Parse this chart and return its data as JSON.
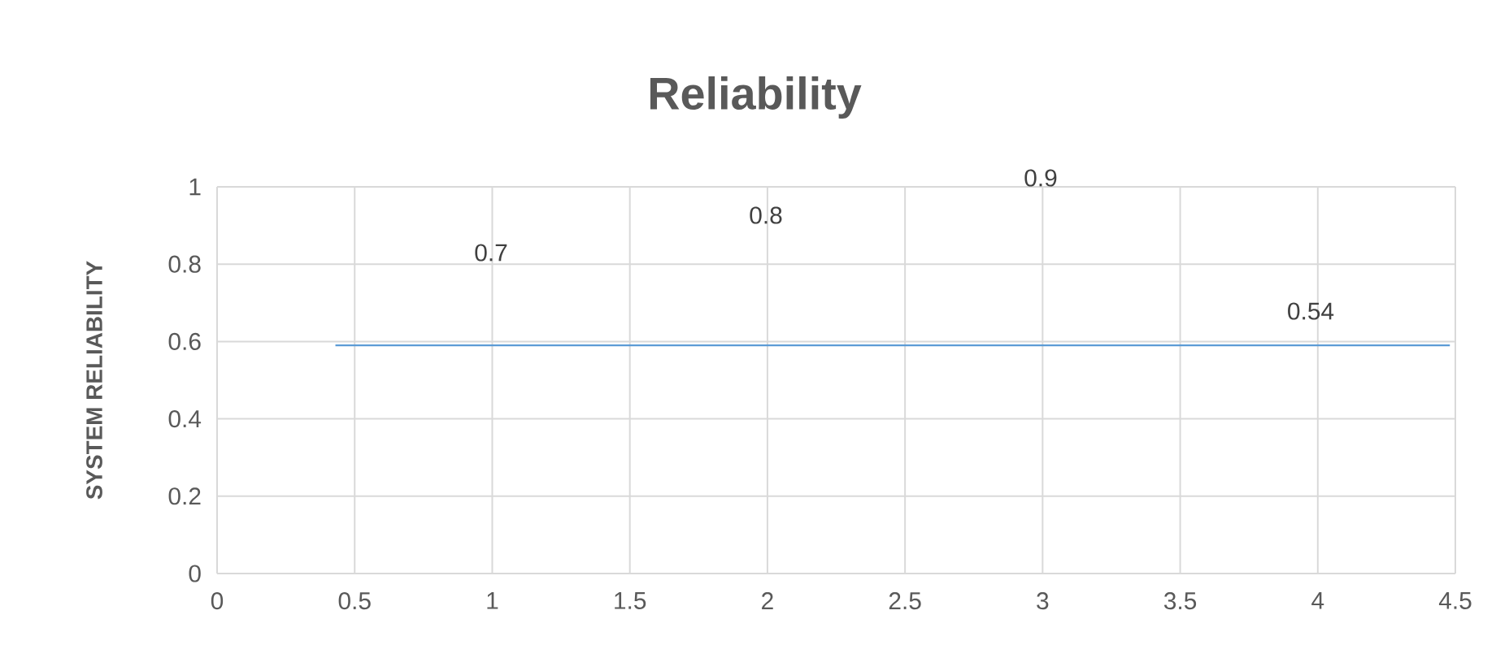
{
  "chart_data": {
    "type": "line",
    "title": "Reliability",
    "ylabel": "SYSTEM RELIABILITY",
    "x": [
      0.43,
      4.48
    ],
    "series": [
      {
        "color": "#5b9bd5",
        "values": [
          0.59,
          0.59
        ]
      }
    ],
    "xlim": [
      0,
      4.5
    ],
    "xticks": [
      0,
      0.5,
      1,
      1.5,
      2,
      2.5,
      3,
      3.5,
      4,
      4.5
    ],
    "ylim": [
      0,
      1
    ],
    "yticks": [
      0,
      0.2,
      0.4,
      0.6,
      0.8,
      1
    ],
    "grid": true,
    "annotations": [
      "0.7",
      "0.8",
      "0.9",
      "0.54"
    ]
  }
}
